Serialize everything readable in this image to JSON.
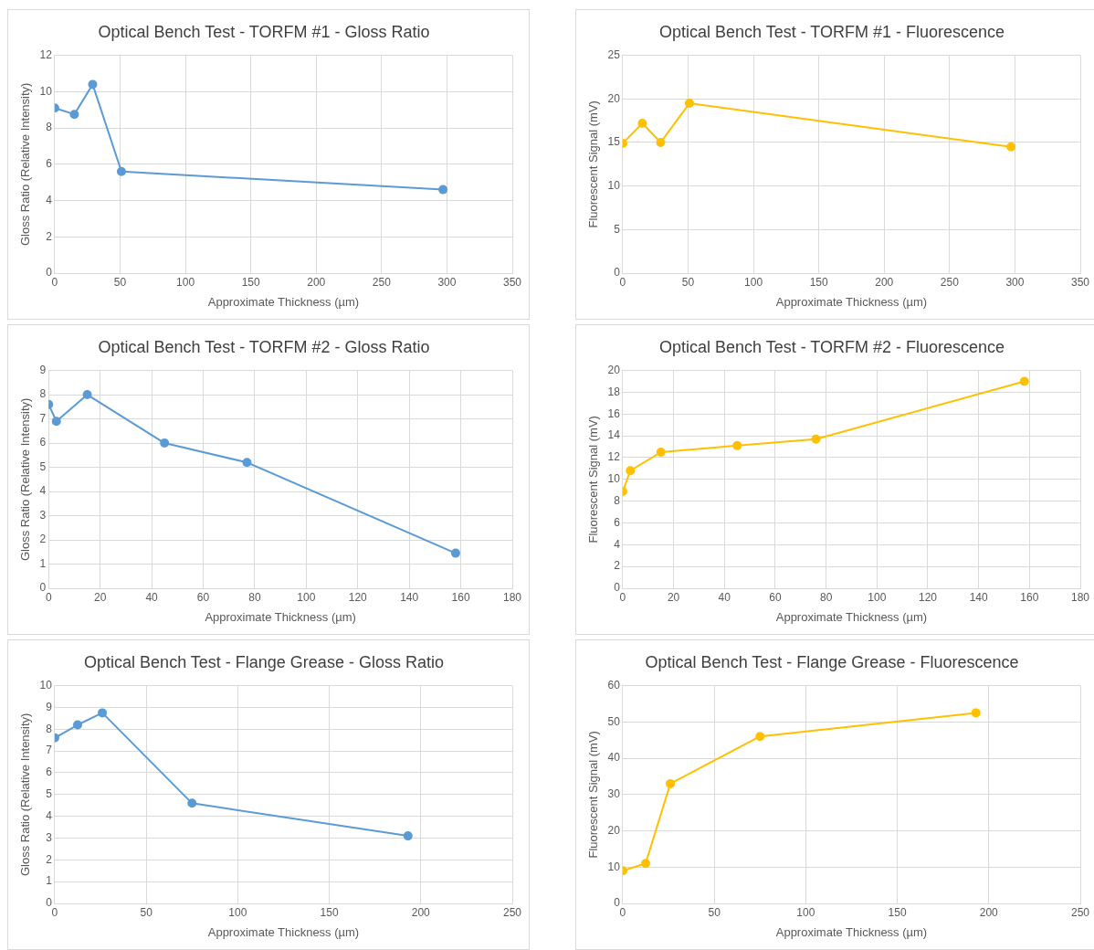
{
  "chart_data": [
    {
      "type": "line",
      "title": "Optical Bench Test - TORFM #1 - Gloss Ratio",
      "xlabel": "Approximate Thickness (µm)",
      "ylabel": "Gloss Ratio (Relative Intensity)",
      "x": [
        0,
        15,
        29,
        51,
        297
      ],
      "series": [
        {
          "color": "#5b9bd5",
          "values": [
            9.1,
            8.75,
            10.4,
            5.6,
            4.6
          ]
        }
      ],
      "xlim": [
        0,
        350
      ],
      "xticks": [
        0,
        50,
        100,
        150,
        200,
        250,
        300,
        350
      ],
      "ylim": [
        0,
        12
      ],
      "yticks": [
        0,
        2,
        4,
        6,
        8,
        10,
        12
      ],
      "grid": true,
      "legend": false,
      "marker": "circle"
    },
    {
      "type": "line",
      "title": "Optical Bench Test - TORFM #1 - Fluorescence",
      "xlabel": "Approximate Thickness (µm)",
      "ylabel": "Fluorescent Signal (mV)",
      "x": [
        0,
        15,
        29,
        51,
        297
      ],
      "series": [
        {
          "color": "#ffc000",
          "values": [
            14.9,
            17.2,
            15.0,
            19.5,
            14.5
          ]
        }
      ],
      "xlim": [
        0,
        350
      ],
      "xticks": [
        0,
        50,
        100,
        150,
        200,
        250,
        300,
        350
      ],
      "ylim": [
        0,
        25
      ],
      "yticks": [
        0,
        5,
        10,
        15,
        20,
        25
      ],
      "grid": true,
      "legend": false,
      "marker": "circle"
    },
    {
      "type": "line",
      "title": "Optical Bench Test - TORFM #2 - Gloss Ratio",
      "xlabel": "Approximate Thickness (µm)",
      "ylabel": "Gloss Ratio (Relative Intensity)",
      "x": [
        0,
        3,
        15,
        45,
        77,
        158
      ],
      "series": [
        {
          "color": "#5b9bd5",
          "values": [
            7.6,
            6.9,
            8.0,
            6.0,
            5.2,
            1.45
          ]
        }
      ],
      "xlim": [
        0,
        180
      ],
      "xticks": [
        0,
        20,
        40,
        60,
        80,
        100,
        120,
        140,
        160,
        180
      ],
      "ylim": [
        0,
        9
      ],
      "yticks": [
        0,
        1,
        2,
        3,
        4,
        5,
        6,
        7,
        8,
        9
      ],
      "grid": true,
      "legend": false,
      "marker": "circle"
    },
    {
      "type": "line",
      "title": "Optical Bench Test - TORFM #2 - Fluorescence",
      "xlabel": "Approximate Thickness (µm)",
      "ylabel": "Fluorescent Signal (mV)",
      "x": [
        0,
        3,
        15,
        45,
        76,
        158
      ],
      "series": [
        {
          "color": "#ffc000",
          "values": [
            8.9,
            10.8,
            12.5,
            13.1,
            13.7,
            19.0
          ]
        }
      ],
      "xlim": [
        0,
        180
      ],
      "xticks": [
        0,
        20,
        40,
        60,
        80,
        100,
        120,
        140,
        160,
        180
      ],
      "ylim": [
        0,
        20
      ],
      "yticks": [
        0,
        2,
        4,
        6,
        8,
        10,
        12,
        14,
        16,
        18,
        20
      ],
      "grid": true,
      "legend": false,
      "marker": "circle"
    },
    {
      "type": "line",
      "title": "Optical Bench Test - Flange Grease - Gloss Ratio",
      "xlabel": "Approximate Thickness (µm)",
      "ylabel": "Gloss Ratio (Relative Intensity)",
      "x": [
        0,
        12.5,
        26,
        75,
        193
      ],
      "series": [
        {
          "color": "#5b9bd5",
          "values": [
            7.6,
            8.2,
            8.75,
            4.6,
            3.1
          ]
        }
      ],
      "xlim": [
        0,
        250
      ],
      "xticks": [
        0,
        50,
        100,
        150,
        200,
        250
      ],
      "ylim": [
        0,
        10
      ],
      "yticks": [
        0,
        1,
        2,
        3,
        4,
        5,
        6,
        7,
        8,
        9,
        10
      ],
      "grid": true,
      "legend": false,
      "marker": "circle"
    },
    {
      "type": "line",
      "title": "Optical Bench Test - Flange Grease - Fluorescence",
      "xlabel": "Approximate Thickness (µm)",
      "ylabel": "Fluorescent Signal (mV)",
      "x": [
        0,
        12.5,
        26,
        75,
        193
      ],
      "series": [
        {
          "color": "#ffc000",
          "values": [
            9,
            11,
            33,
            46,
            52.5
          ]
        }
      ],
      "xlim": [
        0,
        250
      ],
      "xticks": [
        0,
        50,
        100,
        150,
        200,
        250
      ],
      "ylim": [
        0,
        60
      ],
      "yticks": [
        0,
        10,
        20,
        30,
        40,
        50,
        60
      ],
      "grid": true,
      "legend": false,
      "marker": "circle"
    }
  ]
}
